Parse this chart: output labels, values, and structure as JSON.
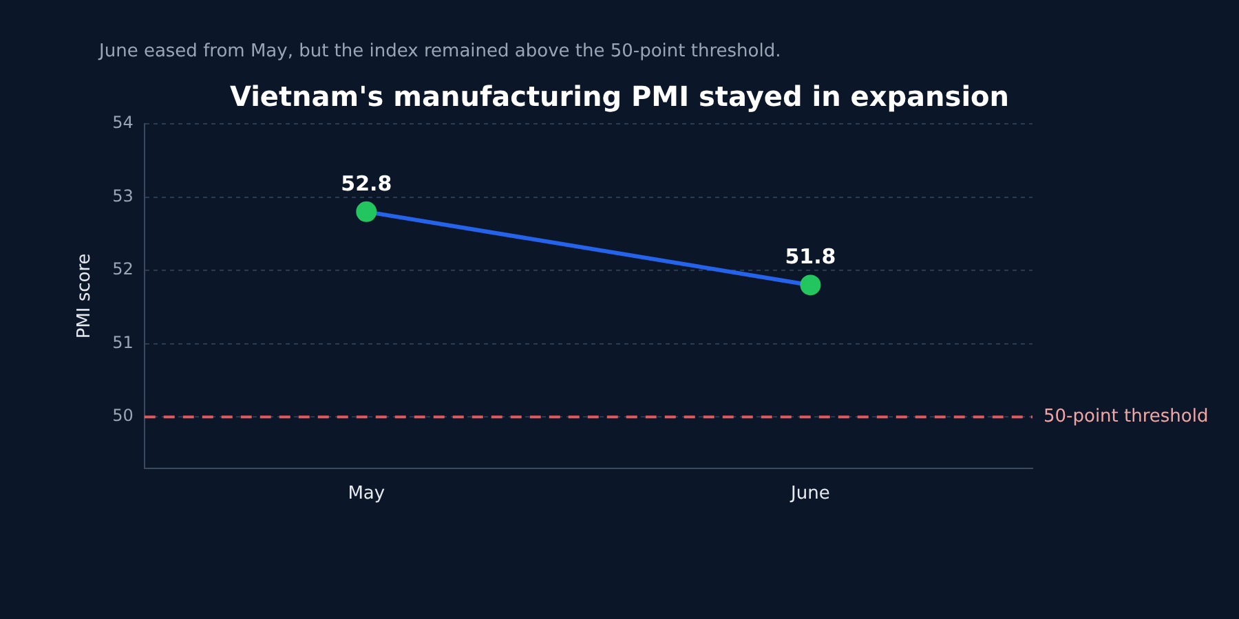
{
  "chart_data": {
    "type": "line",
    "title": "Vietnam's manufacturing PMI stayed in expansion",
    "subtitle": "June eased from May, but the index remained above the 50-point threshold.",
    "ylabel": "PMI score",
    "categories": [
      "May",
      "June"
    ],
    "series": [
      {
        "color": "#2563eb",
        "colors": [
          "#22c55e",
          "#22c55e"
        ],
        "values": [
          52.8,
          51.8
        ]
      }
    ],
    "ylim": [
      49.3,
      54
    ],
    "yticks": [
      50,
      51,
      52,
      53,
      54
    ],
    "grid": "y",
    "legend": false,
    "marker": "circle",
    "line_style": "solid",
    "data_labels": true,
    "ref_lines": [
      {
        "axis": "y",
        "value": 50,
        "label": "50-point threshold",
        "color": "#e05a5a",
        "line_style": "dashed"
      }
    ]
  }
}
